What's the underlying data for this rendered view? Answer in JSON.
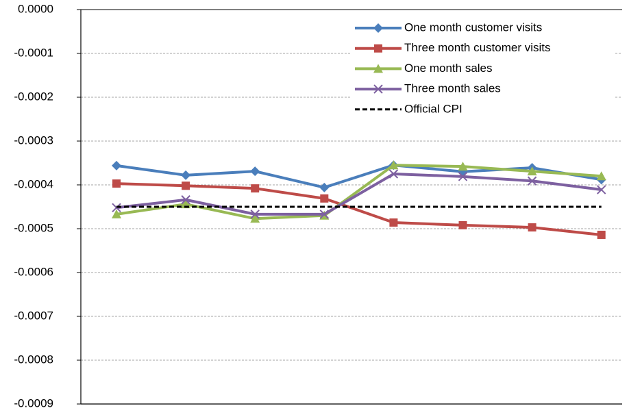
{
  "chart_data": {
    "type": "line",
    "categories": [
      null,
      null,
      null,
      null,
      null,
      null,
      null,
      null
    ],
    "series": [
      {
        "name": "One month customer visits",
        "color": "#4a7ebb",
        "marker": "diamond",
        "values": [
          -0.000356,
          -0.000378,
          -0.000369,
          -0.000406,
          -0.000355,
          -0.00037,
          -0.000361,
          -0.000388
        ]
      },
      {
        "name": "Three month customer visits",
        "color": "#be4b48",
        "marker": "square",
        "values": [
          -0.000397,
          -0.000402,
          -0.000408,
          -0.000431,
          -0.000486,
          -0.000492,
          -0.000497,
          -0.000514
        ]
      },
      {
        "name": "One month sales",
        "color": "#98b954",
        "marker": "triangle",
        "values": [
          -0.000467,
          -0.000444,
          -0.000477,
          -0.00047,
          -0.000355,
          -0.000358,
          -0.000369,
          -0.00038
        ]
      },
      {
        "name": "Three month sales",
        "color": "#7d60a0",
        "marker": "x",
        "values": [
          -0.000452,
          -0.000434,
          -0.000467,
          -0.000467,
          -0.000375,
          -0.000381,
          -0.000391,
          -0.000411
        ]
      },
      {
        "name": "Official CPI",
        "color": "#000000",
        "marker": "none",
        "dashed": true,
        "values": [
          -0.00045,
          -0.00045,
          -0.00045,
          -0.00045,
          -0.00045,
          -0.00045,
          -0.00045,
          -0.00045
        ]
      }
    ],
    "ylim": [
      -0.0009,
      0
    ],
    "yticks": [
      {
        "value": 0,
        "label": "0.0000"
      },
      -0.0001,
      -0.0002,
      -0.0003,
      -0.0004,
      -0.0005,
      -0.0006,
      -0.0007,
      -0.0008,
      -0.0009
    ],
    "grid": true,
    "legend": "top-right"
  }
}
